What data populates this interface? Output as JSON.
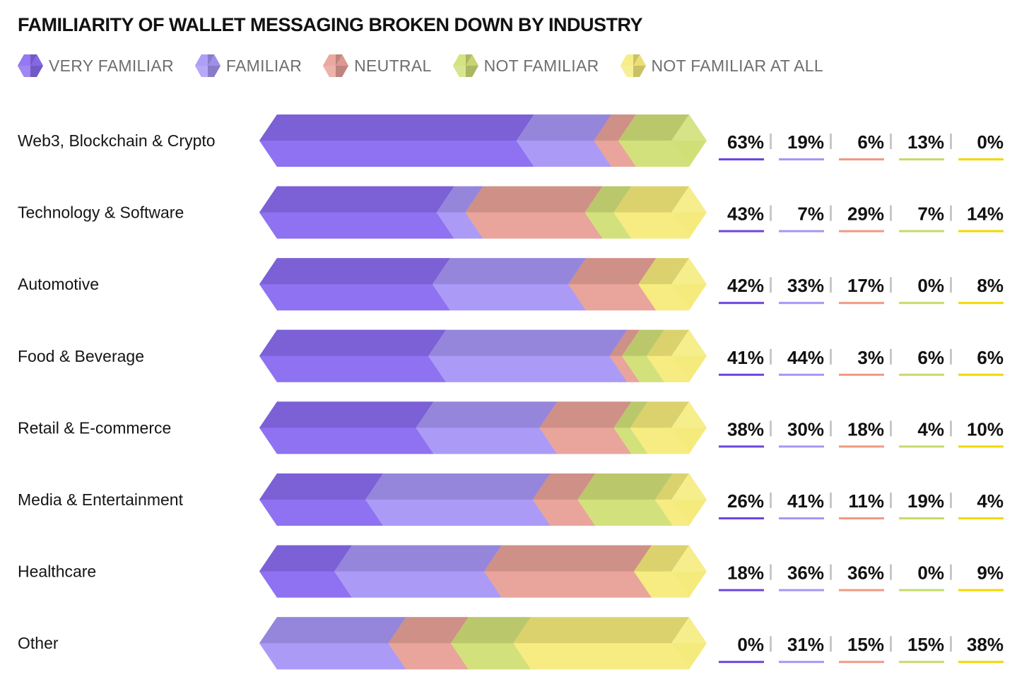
{
  "chart_data": {
    "type": "bar",
    "stacked": true,
    "orientation": "horizontal",
    "title": "FAMILIARITY OF WALLET MESSAGING BROKEN DOWN BY INDUSTRY",
    "categories": [
      "Web3, Blockchain & Crypto",
      "Technology & Software",
      "Automotive",
      "Food & Beverage",
      "Retail & E-commerce",
      "Media & Entertainment",
      "Healthcare",
      "Other"
    ],
    "series": [
      {
        "name": "VERY FAMILIAR",
        "color": "#8b6cf0",
        "values": [
          63,
          43,
          42,
          41,
          38,
          26,
          18,
          0
        ]
      },
      {
        "name": "FAMILIAR",
        "color": "#a796f5",
        "values": [
          19,
          7,
          33,
          44,
          30,
          41,
          36,
          31
        ]
      },
      {
        "name": "NEUTRAL",
        "color": "#e8a198",
        "values": [
          6,
          29,
          17,
          3,
          18,
          11,
          36,
          15
        ]
      },
      {
        "name": "NOT FAMILIAR",
        "color": "#d1df77",
        "values": [
          13,
          7,
          0,
          6,
          4,
          19,
          0,
          15
        ]
      },
      {
        "name": "NOT FAMILIAR AT ALL",
        "color": "#f5eb7c",
        "values": [
          0,
          14,
          8,
          6,
          10,
          4,
          9,
          38
        ]
      }
    ],
    "value_labels": [
      [
        "63%",
        "19%",
        "6%",
        "13%",
        "0%"
      ],
      [
        "43%",
        "7%",
        "29%",
        "7%",
        "14%"
      ],
      [
        "42%",
        "33%",
        "17%",
        "0%",
        "8%"
      ],
      [
        "41%",
        "44%",
        "3%",
        "6%",
        "6%"
      ],
      [
        "38%",
        "30%",
        "18%",
        "4%",
        "10%"
      ],
      [
        "26%",
        "41%",
        "11%",
        "19%",
        "4%"
      ],
      [
        "18%",
        "36%",
        "36%",
        "0%",
        "9%"
      ],
      [
        "0%",
        "31%",
        "15%",
        "15%",
        "38%"
      ]
    ],
    "legend_position": "top-left",
    "grid": false
  },
  "colors": {
    "very_familiar": "#8b6cf0",
    "familiar": "#a796f5",
    "neutral": "#e8a198",
    "not_familiar": "#d1df77",
    "not_familiar_at_all": "#f5eb7c",
    "underline_very_familiar": "#6a45e0",
    "underline_familiar": "#a796f5",
    "underline_neutral": "#f09a82",
    "underline_not_familiar": "#c4dc6a",
    "underline_not_familiar_at_all": "#f2d800",
    "separator": "#c8c8c8"
  },
  "legend_icons": [
    "diamond-icon",
    "diamond-icon",
    "diamond-icon",
    "diamond-icon",
    "diamond-icon"
  ]
}
